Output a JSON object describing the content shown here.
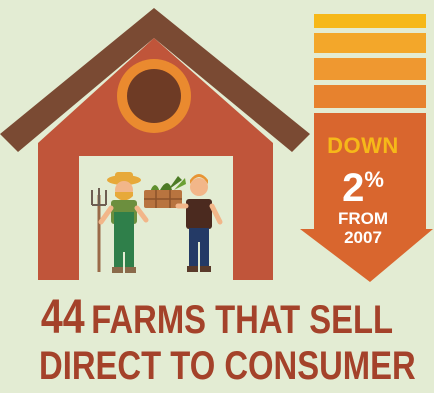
{
  "colors": {
    "background": "#e3ecd3",
    "barn_red": "#c0553a",
    "roof_brown": "#7a4a33",
    "door_light": "#e3ecd3",
    "arrow_orange": "#d9662e",
    "accent_yellow": "#f6b819",
    "headline_red": "#a4422a"
  },
  "icons": [
    "barn-icon",
    "farmer-with-pitchfork-icon",
    "farmer-with-vegetable-crate-icon",
    "down-arrow-icon"
  ],
  "stat": {
    "direction": "DOWN",
    "percent": "2",
    "percent_symbol": "%",
    "from_label": "FROM",
    "year": "2007"
  },
  "headline": {
    "number": "44",
    "line1_text": "FARMS THAT SELL",
    "line2_text": "DIRECT TO CONSUMER"
  }
}
